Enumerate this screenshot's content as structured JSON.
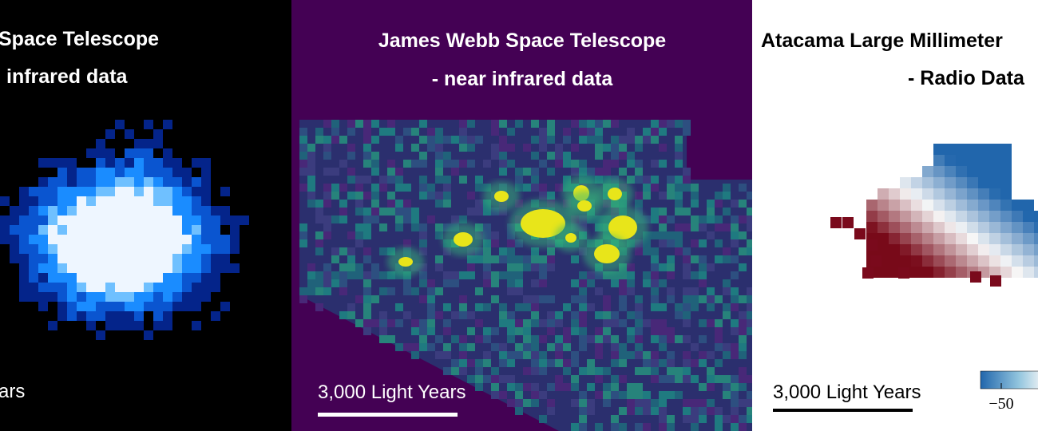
{
  "panels": [
    {
      "title_lines": [
        "Space Telescope",
        "infrared data"
      ],
      "scale_label": "ars"
    },
    {
      "title_lines": [
        "James Webb Space Telescope",
        "- near infrared data"
      ],
      "scale_label": "3,000 Light Years"
    },
    {
      "title_lines": [
        "Atacama Large Millimeter",
        "- Radio Data"
      ],
      "scale_label": "3,000 Light Years",
      "colorbar": {
        "ticks": [
          {
            "value": -50,
            "label": "−50"
          }
        ]
      }
    }
  ]
}
